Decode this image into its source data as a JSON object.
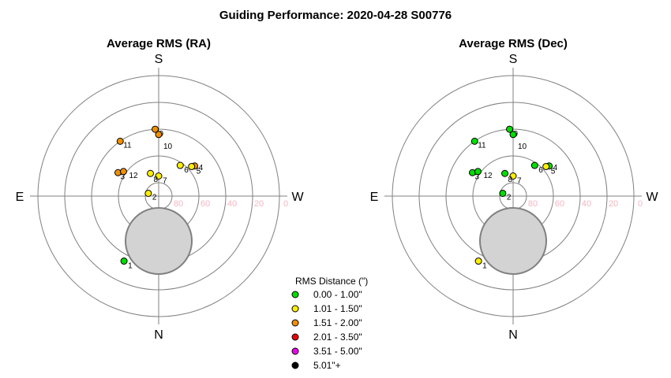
{
  "title": "Guiding Performance: 2020-04-28 S00776",
  "colors": {
    "ring": "#808080",
    "axis": "#808080",
    "disk_fill": "#d3d3d3",
    "disk_stroke": "#808080",
    "ring_label": "#f4b6c2"
  },
  "compass": {
    "top": "S",
    "bottom": "N",
    "left": "E",
    "right": "W"
  },
  "ring_labels": [
    "80",
    "60",
    "40",
    "20",
    "0"
  ],
  "legend": {
    "title": "RMS Distance (\")",
    "items": [
      {
        "label": "0.00 - 1.00\"",
        "color": "#00dd00"
      },
      {
        "label": "1.01 - 1.50\"",
        "color": "#ffee00"
      },
      {
        "label": "1.51 - 2.00\"",
        "color": "#f09000"
      },
      {
        "label": "2.01 - 3.50\"",
        "color": "#ee0000"
      },
      {
        "label": "3.51 - 5.00\"",
        "color": "#ee00ee"
      },
      {
        "label": "5.01\"+",
        "color": "#000000"
      }
    ]
  },
  "chart_data": [
    {
      "type": "scatter",
      "projection": "polar",
      "title": "Average RMS (RA)",
      "radial_axis": {
        "label": "altitude",
        "ticks": [
          80,
          60,
          40,
          20,
          0
        ],
        "range": [
          90,
          0
        ]
      },
      "points": [
        {
          "label": "1",
          "azimuth": 152,
          "altitude": 35,
          "class": 0
        },
        {
          "label": "2",
          "azimuth": 75,
          "altitude": 82,
          "class": 1
        },
        {
          "label": "3",
          "azimuth": 60,
          "altitude": 55,
          "class": 2
        },
        {
          "label": "12",
          "azimuth": 55,
          "altitude": 58,
          "class": 2
        },
        {
          "label": "4",
          "azimuth": 310,
          "altitude": 55,
          "class": 2
        },
        {
          "label": "5",
          "azimuth": 312,
          "altitude": 57,
          "class": 1
        },
        {
          "label": "6",
          "azimuth": 325,
          "altitude": 62,
          "class": 1
        },
        {
          "label": "7",
          "azimuth": 0,
          "altitude": 75,
          "class": 1
        },
        {
          "label": "8",
          "azimuth": 20,
          "altitude": 72,
          "class": 1
        },
        {
          "label": "9",
          "azimuth": 3,
          "altitude": 40,
          "class": 2
        },
        {
          "label": "10",
          "azimuth": 0,
          "altitude": 44,
          "class": 2
        },
        {
          "label": "11",
          "azimuth": 35,
          "altitude": 40,
          "class": 2
        }
      ]
    },
    {
      "type": "scatter",
      "projection": "polar",
      "title": "Average RMS (Dec)",
      "radial_axis": {
        "label": "altitude",
        "ticks": [
          80,
          60,
          40,
          20,
          0
        ],
        "range": [
          90,
          0
        ]
      },
      "points": [
        {
          "label": "1",
          "azimuth": 152,
          "altitude": 35,
          "class": 1
        },
        {
          "label": "2",
          "azimuth": 75,
          "altitude": 82,
          "class": 0
        },
        {
          "label": "3",
          "azimuth": 60,
          "altitude": 55,
          "class": 0
        },
        {
          "label": "12",
          "azimuth": 55,
          "altitude": 58,
          "class": 0
        },
        {
          "label": "4",
          "azimuth": 310,
          "altitude": 55,
          "class": 0
        },
        {
          "label": "5",
          "azimuth": 312,
          "altitude": 57,
          "class": 1
        },
        {
          "label": "6",
          "azimuth": 325,
          "altitude": 62,
          "class": 0
        },
        {
          "label": "7",
          "azimuth": 0,
          "altitude": 75,
          "class": 1
        },
        {
          "label": "8",
          "azimuth": 20,
          "altitude": 72,
          "class": 0
        },
        {
          "label": "9",
          "azimuth": 3,
          "altitude": 40,
          "class": 0
        },
        {
          "label": "10",
          "azimuth": 0,
          "altitude": 44,
          "class": 0
        },
        {
          "label": "11",
          "azimuth": 35,
          "altitude": 40,
          "class": 0
        }
      ]
    }
  ]
}
